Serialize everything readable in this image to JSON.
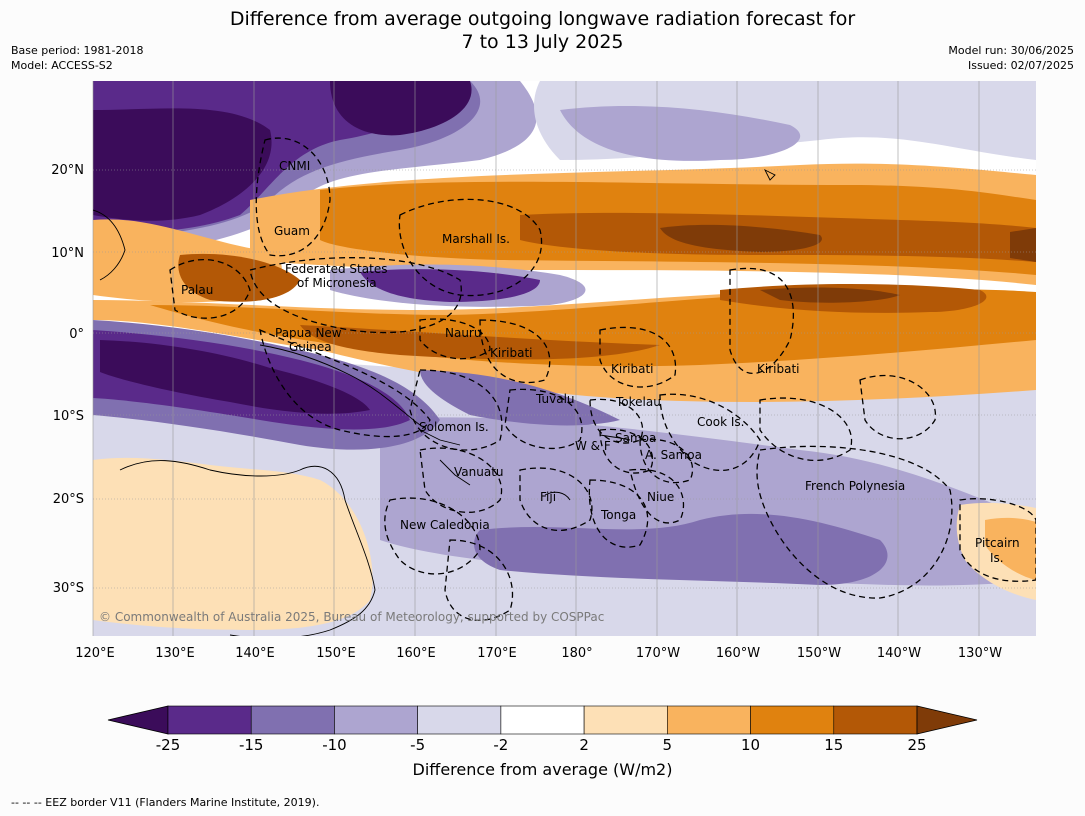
{
  "header": {
    "title_line1": "Difference from average outgoing longwave radiation forecast for",
    "title_line2": "7 to 13 July 2025",
    "base_period": "Base period: 1981-2018",
    "model": "Model: ACCESS-S2",
    "model_run": "Model run: 30/06/2025",
    "issued": "Issued: 02/07/2025"
  },
  "map": {
    "lat_labels": [
      "20°N",
      "10°N",
      "0°",
      "10°S",
      "20°S",
      "30°S"
    ],
    "lon_labels": [
      "120°E",
      "130°E",
      "140°E",
      "150°E",
      "160°E",
      "170°E",
      "180°",
      "170°W",
      "160°W",
      "150°W",
      "140°W",
      "130°W"
    ],
    "places": [
      {
        "name": "CNMI"
      },
      {
        "name": "Guam"
      },
      {
        "name": "Marshall Is."
      },
      {
        "name": "Federated States"
      },
      {
        "name": "of Micronesia"
      },
      {
        "name": "Palau"
      },
      {
        "name": "Papua New"
      },
      {
        "name": "Guinea"
      },
      {
        "name": "Nauru"
      },
      {
        "name": "Kiribati"
      },
      {
        "name": "Kiribati"
      },
      {
        "name": "Kiribati"
      },
      {
        "name": "Tuvalu"
      },
      {
        "name": "Tokelau"
      },
      {
        "name": "Cook Is."
      },
      {
        "name": "Solomon Is."
      },
      {
        "name": "W & F"
      },
      {
        "name": "Samoa"
      },
      {
        "name": "A. Samoa"
      },
      {
        "name": "Vanuatu"
      },
      {
        "name": "Fiji"
      },
      {
        "name": "Niue"
      },
      {
        "name": "Tonga"
      },
      {
        "name": "French Polynesia"
      },
      {
        "name": "New Caledonia"
      },
      {
        "name": "Pitcairn"
      },
      {
        "name": "Is."
      }
    ],
    "copyright": "© Commonwealth of Australia 2025, Bureau of Meteorology, supported by COSPPac"
  },
  "colorbar": {
    "title": "Difference from average (W/m2)",
    "ticks": [
      "-25",
      "-15",
      "-10",
      "-5",
      "-2",
      "2",
      "5",
      "10",
      "15",
      "25"
    ],
    "colors": [
      "#3b0c5a",
      "#5a2a8a",
      "#8070b0",
      "#ada5d0",
      "#d8d8ea",
      "#ffffff",
      "#fde0b6",
      "#f9b35e",
      "#e0820f",
      "#b35806",
      "#7f3b08"
    ]
  },
  "footnote": "--  --  -- EEZ border V11 (Flanders Marine Institute, 2019)."
}
